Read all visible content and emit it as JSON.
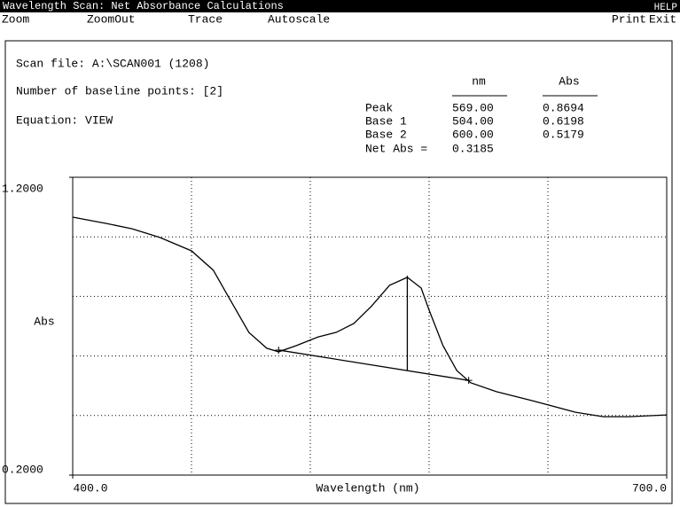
{
  "title_bar": {
    "title": "Wavelength Scan: Net Absorbance Calculations",
    "help": "HELP"
  },
  "menu": [
    "Zoom",
    "ZoomOut",
    "Trace",
    "Autoscale",
    "Print",
    "Exit"
  ],
  "info": [
    "Scan file: A:\\SCAN001 (1208)",
    "Number of baseline points: [2]",
    "Equation: VIEW"
  ],
  "table": {
    "headers": [
      "nm",
      "Abs"
    ],
    "rows": [
      [
        "Peak",
        "569.00",
        "0.8694"
      ],
      [
        "Base 1",
        "504.00",
        "0.6198"
      ],
      [
        "Base 2",
        "600.00",
        "0.5179"
      ]
    ],
    "net": [
      "Net Abs =",
      "0.3185"
    ]
  },
  "chart_data": {
    "type": "line",
    "color": "#000000",
    "x": [
      400,
      417,
      430,
      444,
      460,
      471,
      480,
      489,
      498,
      504,
      513,
      524,
      533,
      542,
      551,
      560,
      569,
      576,
      580,
      587,
      594,
      601,
      614,
      632,
      654,
      668,
      681,
      700
    ],
    "values": [
      1.066,
      1.045,
      1.027,
      0.998,
      0.953,
      0.888,
      0.783,
      0.679,
      0.626,
      0.614,
      0.635,
      0.664,
      0.679,
      0.709,
      0.768,
      0.837,
      0.864,
      0.828,
      0.754,
      0.635,
      0.551,
      0.51,
      0.48,
      0.45,
      0.411,
      0.396,
      0.396,
      0.402
    ],
    "xlim": [
      400,
      700
    ],
    "ylim": [
      0.2,
      1.2
    ],
    "xticks": [
      {
        "value": 400,
        "label": "400.0"
      },
      {
        "value": 700,
        "label": "700.0"
      }
    ],
    "yticks": [
      {
        "value": 0.2,
        "label": "0.2000"
      },
      {
        "value": 1.2,
        "label": "1.2000"
      }
    ],
    "grid_x": [
      460,
      520,
      580,
      640
    ],
    "grid_y": [
      0.4,
      0.6,
      0.8,
      1.0
    ],
    "xlabel": "Wavelength (nm)",
    "ylabel": "Abs"
  }
}
